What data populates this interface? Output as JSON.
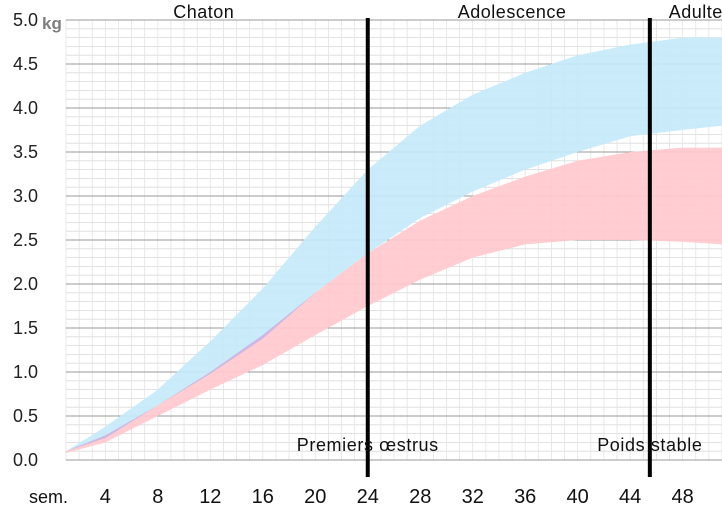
{
  "chart_data": {
    "type": "area",
    "title": "",
    "xlabel": "sem.",
    "ylabel": "kg",
    "y_unit": "kg",
    "x_unit": "sem.",
    "xlim": [
      1,
      51
    ],
    "ylim": [
      0,
      5
    ],
    "x_ticks": [
      4,
      8,
      12,
      16,
      20,
      24,
      28,
      32,
      36,
      40,
      44,
      48
    ],
    "y_ticks": [
      "0.0",
      "0.5",
      "1.0",
      "1.5",
      "2.0",
      "2.5",
      "3.0",
      "3.5",
      "4.0",
      "4.5",
      "5.0"
    ],
    "grid": true,
    "legend": "none",
    "phases": [
      {
        "label": "Chaton",
        "x_center": 11.5
      },
      {
        "label": "Adolescence",
        "x_center": 35
      },
      {
        "label": "Adulte",
        "x_center": 49
      }
    ],
    "events": [
      {
        "label": "Premiers œstrus",
        "x": 24
      },
      {
        "label": "Poids stable",
        "x": 45.5
      }
    ],
    "series": [
      {
        "color": "#c5eafa",
        "x": [
          1,
          4,
          8,
          12,
          16,
          20,
          24,
          28,
          32,
          36,
          40,
          44,
          48,
          51
        ],
        "low": [
          0.1,
          0.25,
          0.62,
          0.98,
          1.38,
          1.9,
          2.35,
          2.75,
          3.05,
          3.3,
          3.5,
          3.68,
          3.75,
          3.8
        ],
        "high": [
          0.1,
          0.38,
          0.8,
          1.35,
          1.95,
          2.65,
          3.3,
          3.8,
          4.15,
          4.4,
          4.6,
          4.72,
          4.8,
          4.8
        ]
      },
      {
        "color": "#ffc9ce",
        "x": [
          1,
          4,
          8,
          12,
          16,
          20,
          24,
          28,
          32,
          36,
          40,
          44,
          48,
          51
        ],
        "low": [
          0.08,
          0.2,
          0.5,
          0.8,
          1.08,
          1.42,
          1.75,
          2.05,
          2.3,
          2.45,
          2.5,
          2.5,
          2.48,
          2.45
        ],
        "high": [
          0.1,
          0.28,
          0.62,
          1.0,
          1.42,
          1.9,
          2.35,
          2.72,
          3.0,
          3.22,
          3.4,
          3.5,
          3.55,
          3.55
        ]
      }
    ]
  }
}
